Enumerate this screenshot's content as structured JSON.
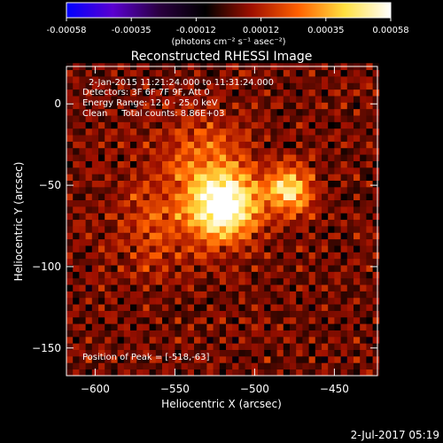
{
  "chart_data": {
    "type": "heatmap",
    "title": "Reconstructed RHESSI Image",
    "xlabel": "Heliocentric X (arcsec)",
    "ylabel": "Heliocentric Y (arcsec)",
    "xlim": [
      -618,
      -423
    ],
    "ylim": [
      -167,
      23
    ],
    "x_ticks": [
      -600,
      -550,
      -500,
      -450
    ],
    "y_ticks": [
      -150,
      -100,
      -50,
      0
    ],
    "colorbar": {
      "min": -0.00058,
      "max": 0.00058,
      "ticks": [
        "-0.00058",
        "-0.00035",
        "-0.00012",
        "0.00012",
        "0.00035",
        "0.00058"
      ],
      "units_label": "(photons cm⁻² s⁻¹ asec⁻²)",
      "colormap": [
        "#0000ff",
        "#5a00d0",
        "#2a0040",
        "#000000",
        "#a01000",
        "#ff6000",
        "#ffe040",
        "#ffffff"
      ]
    },
    "info_lines": [
      "2-Jan-2015 11:21:24.000 to 11:31:24.000",
      "Detectors: 3F 6F 7F 9F, Att 0",
      "Energy Range: 12.0 - 25.0 keV",
      "Clean     Total counts: 8.86E+03"
    ],
    "peak_label": "Position of Peak = [-518,-63]",
    "sources": [
      {
        "x": -518,
        "y": -63,
        "amplitude": 1.0,
        "sigma": 14
      },
      {
        "x": -478,
        "y": -53,
        "amplitude": 0.75,
        "sigma": 10
      },
      {
        "x": -530,
        "y": -35,
        "amplitude": 0.35,
        "sigma": 20
      },
      {
        "x": -560,
        "y": -75,
        "amplitude": 0.25,
        "sigma": 22
      }
    ],
    "background_noise": {
      "amplitude": 0.35,
      "pixel_arcsec": 4
    }
  },
  "footer_timestamp": "2-Jul-2017 05:19"
}
